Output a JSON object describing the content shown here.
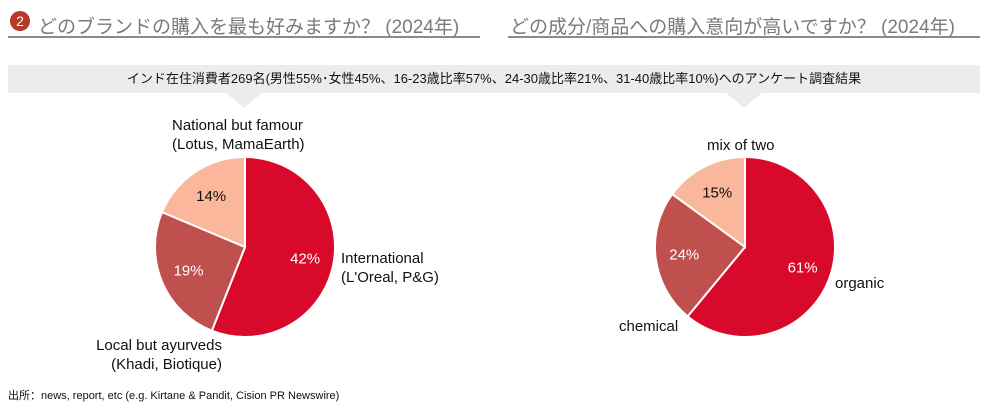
{
  "header_left": {
    "badge": "2",
    "text": "どのブランドの購入を最も好みますか？ (2024年)"
  },
  "header_right": {
    "text": "どの成分/商品への購入意向が高いですか？ (2024年)"
  },
  "banner": "インド在住消費者269名(男性55%･女性45%、16-23歳比率57%、24-30歳比率21%、31-40歳比率10%)へのアンケート調査結果",
  "chart_data": [
    {
      "type": "pie",
      "title": "",
      "slices": [
        {
          "label_lines": [
            "International",
            "(L'Oreal, P&G)"
          ],
          "value": 42,
          "percent_label": "42%",
          "color": "#d9092b"
        },
        {
          "label_lines": [
            "Local but ayurveds",
            "(Khadi, Biotique)"
          ],
          "value": 19,
          "percent_label": "19%",
          "color": "#c0504d"
        },
        {
          "label_lines": [
            "National but famour",
            "(Lotus, MamaEarth)"
          ],
          "value": 14,
          "percent_label": "14%",
          "color": "#fbb79b"
        }
      ]
    },
    {
      "type": "pie",
      "title": "",
      "slices": [
        {
          "label_lines": [
            "organic"
          ],
          "value": 61,
          "percent_label": "61%",
          "color": "#d9092b"
        },
        {
          "label_lines": [
            "chemical"
          ],
          "value": 24,
          "percent_label": "24%",
          "color": "#c0504d"
        },
        {
          "label_lines": [
            "mix of two"
          ],
          "value": 15,
          "percent_label": "15%",
          "color": "#fbb79b"
        }
      ]
    }
  ],
  "source": "出所：news, report, etc (e.g. Kirtane & Pandit, Cision PR Newswire)"
}
